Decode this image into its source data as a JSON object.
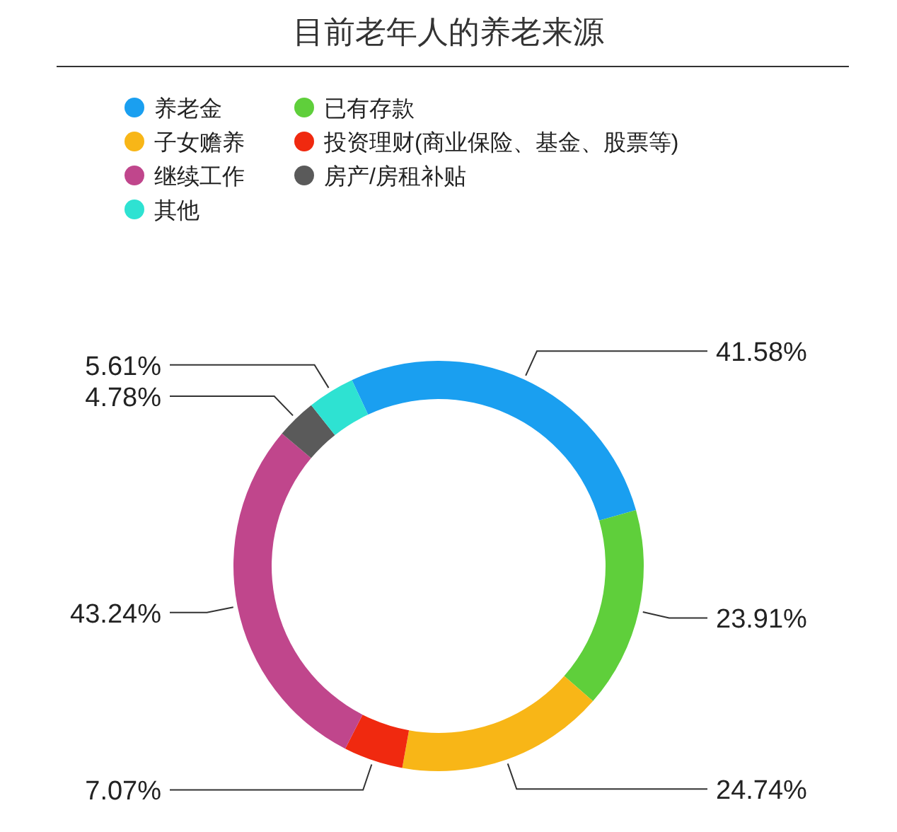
{
  "chart_data": {
    "type": "donut",
    "title": "目前老年人的养老来源",
    "categories": [
      "养老金",
      "已有存款",
      "子女赡养",
      "投资理财(商业保险、基金、股票等)",
      "继续工作",
      "房产/房租补贴",
      "其他"
    ],
    "values": [
      41.58,
      23.91,
      24.74,
      7.07,
      43.24,
      4.78,
      5.61
    ],
    "value_labels": [
      "41.58%",
      "23.91%",
      "24.74%",
      "7.07%",
      "43.24%",
      "4.78%",
      "5.61%"
    ],
    "colors": [
      "#1a9ff0",
      "#5fcf3b",
      "#f8b617",
      "#f0290f",
      "#c0468c",
      "#5a5a5a",
      "#2ee2d2"
    ],
    "legend": "top left"
  }
}
